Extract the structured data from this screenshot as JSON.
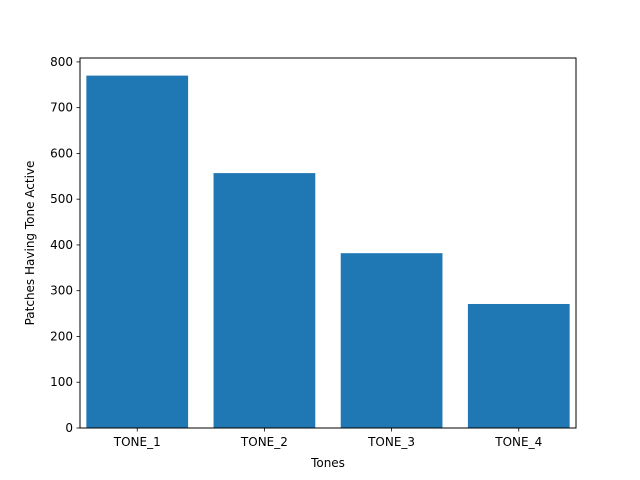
{
  "chart_data": {
    "type": "bar",
    "title": "",
    "xlabel": "Tones",
    "ylabel": "Patches Having Tone Active",
    "categories": [
      "TONE_1",
      "TONE_2",
      "TONE_3",
      "TONE_4"
    ],
    "values": [
      770,
      557,
      382,
      271
    ],
    "ylim": [
      0,
      808.5
    ],
    "yticks": [
      0,
      100,
      200,
      300,
      400,
      500,
      600,
      700,
      800
    ],
    "grid": false,
    "legend": "none",
    "bar_color": "#1f77b4"
  }
}
